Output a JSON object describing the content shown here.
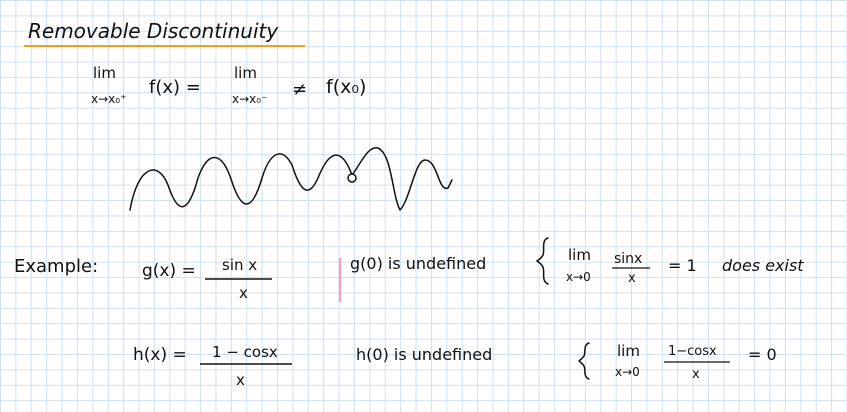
{
  "title": "Removable Discontinuity",
  "colors": {
    "grid": "#cfe0f0",
    "ink": "#111111",
    "title_underline": "#f0a21e",
    "margin_mark": "#f0a3c4"
  },
  "definition": {
    "lim_word_left": "lim",
    "lim_sub_left": "x→x₀⁺",
    "lim_left_fn": "f(x) =",
    "lim_word_right": "lim",
    "lim_sub_right": "x→x₀⁻",
    "not_equal": "≠",
    "f_x0": "f(x₀)"
  },
  "example": {
    "label": "Example:",
    "g_lhs": "g(x) =",
    "g_num": "sin x",
    "g_den": "x",
    "g_undef": "g(0) is undefined",
    "g_lim_word": "lim",
    "g_lim_sub": "x→0",
    "g_lim_num": "sinx",
    "g_lim_den": "x",
    "g_lim_value": "= 1",
    "g_exist": "does exist",
    "h_lhs": "h(x) =",
    "h_num": "1 − cosx",
    "h_den": "x",
    "h_undef": "h(0) is undefined",
    "h_lim_word": "lim",
    "h_lim_sub": "x→0",
    "h_lim_num": "1−cosx",
    "h_lim_den": "x",
    "h_lim_value": "= 0"
  }
}
